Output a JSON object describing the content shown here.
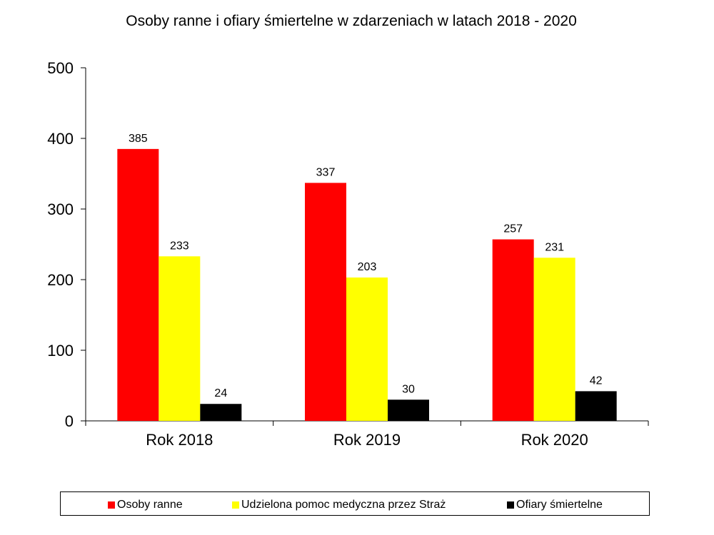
{
  "chart_data": {
    "type": "bar",
    "title": "Osoby ranne i ofiary śmiertelne w zdarzeniach w latach 2018 - 2020",
    "categories": [
      "Rok 2018",
      "Rok 2019",
      "Rok 2020"
    ],
    "series": [
      {
        "name": "Osoby ranne",
        "color": "#ff0000",
        "values": [
          385,
          337,
          257
        ]
      },
      {
        "name": "Udzielona pomoc medyczna przez Straż",
        "color": "#ffff00",
        "values": [
          233,
          203,
          231
        ]
      },
      {
        "name": "Ofiary śmiertelne",
        "color": "#000000",
        "values": [
          24,
          30,
          42
        ]
      }
    ],
    "ylim": [
      0,
      500
    ],
    "yticks": [
      "0",
      "100",
      "200",
      "300",
      "400",
      "500"
    ],
    "xlabel": "",
    "ylabel": "",
    "grid": false,
    "legend_position": "bottom"
  }
}
